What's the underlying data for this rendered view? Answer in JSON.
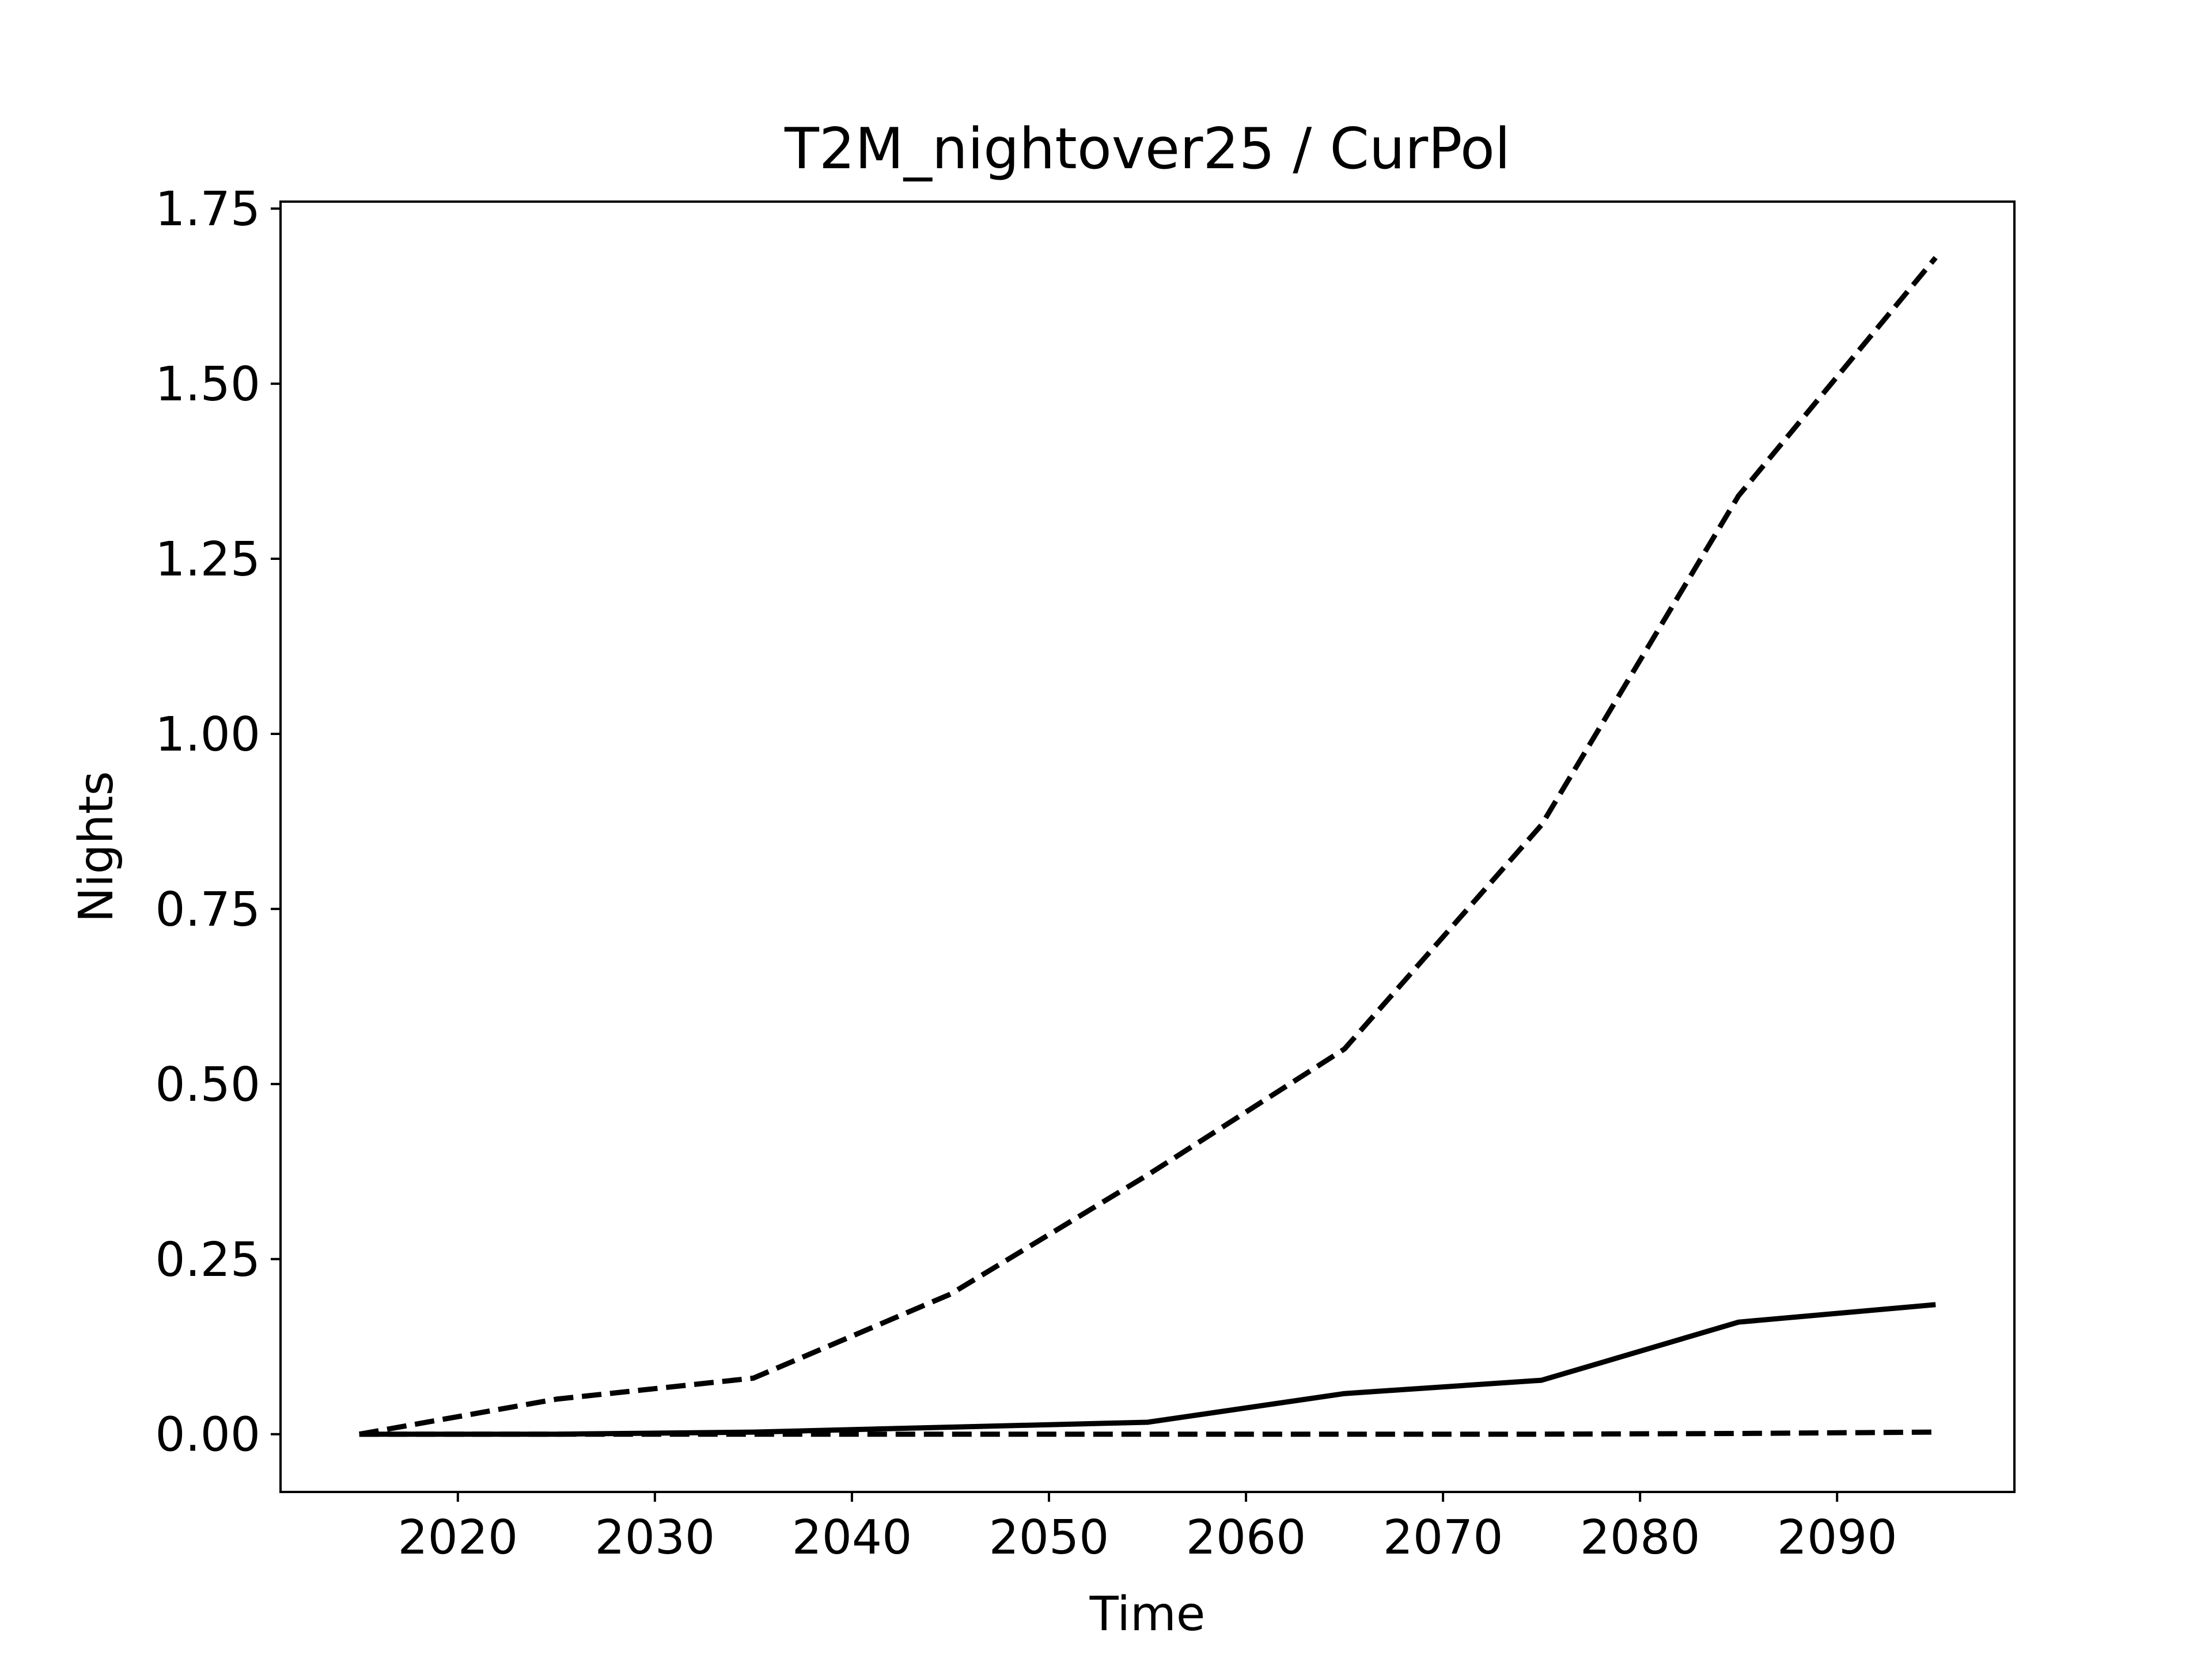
{
  "chart_data": {
    "type": "line",
    "title": "T2M_nightover25 / CurPol",
    "xlabel": "Time",
    "ylabel": "Nights",
    "xlim": [
      2011,
      2099
    ],
    "ylim": [
      -0.0825,
      1.76
    ],
    "x_ticks": [
      2020,
      2030,
      2040,
      2050,
      2060,
      2070,
      2080,
      2090
    ],
    "y_ticks": [
      0.0,
      0.25,
      0.5,
      0.75,
      1.0,
      1.25,
      1.5,
      1.75
    ],
    "y_tick_labels": [
      "0.00",
      "0.25",
      "0.50",
      "0.75",
      "1.00",
      "1.25",
      "1.50",
      "1.75"
    ],
    "x": [
      2015,
      2025,
      2035,
      2045,
      2055,
      2065,
      2075,
      2085,
      2095
    ],
    "series": [
      {
        "style": "dashed",
        "color": "#000000",
        "values": [
          0.0,
          0.05,
          0.08,
          0.2,
          0.37,
          0.55,
          0.87,
          1.34,
          1.68
        ]
      },
      {
        "style": "solid",
        "color": "#000000",
        "values": [
          0.0,
          0.0,
          0.003,
          0.01,
          0.017,
          0.058,
          0.077,
          0.16,
          0.185
        ]
      },
      {
        "style": "dashed",
        "color": "#000000",
        "values": [
          0.0,
          0.0,
          0.0,
          0.0,
          0.0,
          0.0,
          0.0,
          0.001,
          0.003
        ]
      }
    ],
    "grid": false,
    "legend": null
  }
}
